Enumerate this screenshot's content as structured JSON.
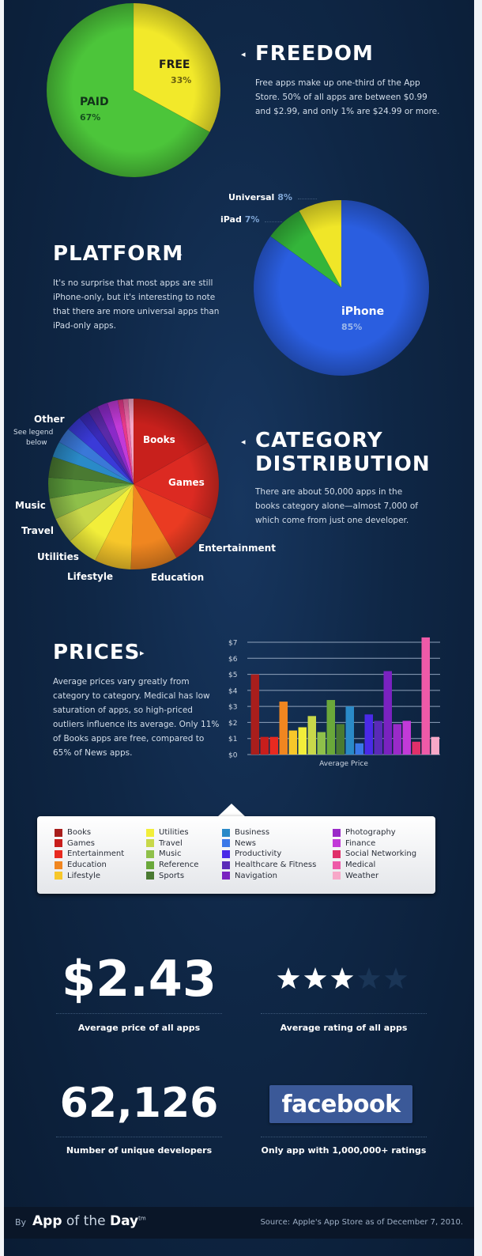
{
  "freedom": {
    "title": "FREEDOM",
    "text": "Free apps make up one-third of the App Store. 50% of all apps are between $0.99 and $2.99, and only 1% are $24.99 or more.",
    "free_label": "FREE",
    "free_pct": "33%",
    "paid_label": "PAID",
    "paid_pct": "67%"
  },
  "platform": {
    "title": "PLATFORM",
    "text": "It's no surprise that most apps are still iPhone-only, but it's interesting to note that there are more universal apps than iPad-only apps.",
    "universal_label": "Universal",
    "universal_pct": "8%",
    "ipad_label": "iPad",
    "ipad_pct": "7%",
    "iphone_label": "iPhone",
    "iphone_pct": "85%"
  },
  "category": {
    "title_line1": "CATEGORY",
    "title_line2": "DISTRIBUTION",
    "text": "There are about 50,000 apps in the books category alone—almost 7,000 of which come from just one developer.",
    "labels": {
      "other": "Other",
      "other_note_1": "See legend",
      "other_note_2": "below",
      "books": "Books",
      "games": "Games",
      "entertainment": "Entertainment",
      "education": "Education",
      "lifestyle": "Lifestyle",
      "utilities": "Utilities",
      "travel": "Travel",
      "music": "Music"
    }
  },
  "prices": {
    "title": "PRICES",
    "text": "Average prices vary greatly from category to category. Medical has low saturation of apps, so high-priced outliers influence its average. Only 11% of Books apps are free, compared to 65% of News apps."
  },
  "chart_data": [
    {
      "type": "pie",
      "labels": [
        "FREE",
        "PAID"
      ],
      "values": [
        33,
        67
      ],
      "colors": [
        "#f2e92a",
        "#4cc53a"
      ]
    },
    {
      "type": "pie",
      "labels": [
        "Universal",
        "iPad",
        "iPhone"
      ],
      "values": [
        8,
        7,
        85
      ],
      "colors": [
        "#f0e628",
        "#34b53a",
        "#2a5ee0"
      ]
    },
    {
      "type": "pie",
      "labels": [
        "Books",
        "Games",
        "Entertainment",
        "Education",
        "Lifestyle",
        "Utilities",
        "Travel",
        "Music",
        "Reference",
        "Sports",
        "Business",
        "News",
        "Productivity",
        "Healthcare & Fitness",
        "Navigation",
        "Photography",
        "Finance",
        "Social Networking",
        "Medical",
        "Weather"
      ],
      "values": [
        17,
        15,
        10,
        9,
        7,
        6,
        5,
        4,
        4,
        4,
        3,
        3,
        3,
        2,
        2,
        2,
        2,
        1,
        1,
        1
      ],
      "colors": [
        "#c8201c",
        "#dc2a22",
        "#ea3b22",
        "#f08620",
        "#f7c72a",
        "#f2ee3a",
        "#c8d84a",
        "#8fc04a",
        "#5a9a3a",
        "#4a7a32",
        "#2a8ac8",
        "#3a78d8",
        "#3a3ad8",
        "#3a2ab8",
        "#5a2aa8",
        "#8a2ac8",
        "#c23ad8",
        "#e83a8a",
        "#ee6aa8",
        "#f7a8c8"
      ]
    },
    {
      "type": "bar",
      "ylabel": "",
      "xlabel": "Average Price",
      "ylim": [
        0,
        7
      ],
      "yticks": [
        "$0",
        "$1",
        "$2",
        "$3",
        "$4",
        "$5",
        "$6",
        "$7"
      ],
      "categories": [
        "Books",
        "Games",
        "Entertainment",
        "Education",
        "Lifestyle",
        "Utilities",
        "Travel",
        "Music",
        "Reference",
        "Sports",
        "Business",
        "News",
        "Productivity",
        "Healthcare & Fitness",
        "Navigation",
        "Photography",
        "Finance",
        "Social Networking",
        "Medical",
        "Weather"
      ],
      "values": [
        5.0,
        1.1,
        1.1,
        3.3,
        1.5,
        1.7,
        2.4,
        1.4,
        3.4,
        1.9,
        3.0,
        0.7,
        2.5,
        2.1,
        5.2,
        1.9,
        2.1,
        0.8,
        7.3,
        1.1
      ],
      "colors": [
        "#a81e1c",
        "#c81e1c",
        "#e82a20",
        "#f08620",
        "#f7c72a",
        "#f2ee3a",
        "#c8d84a",
        "#8fc04a",
        "#6aa83a",
        "#4a7a32",
        "#2a8ac8",
        "#3a78e8",
        "#4a2ae8",
        "#5a2ab8",
        "#7a22c0",
        "#9a2ac8",
        "#c23ad8",
        "#e0306a",
        "#ee5aa8",
        "#f7a8c8"
      ]
    }
  ],
  "legend": {
    "items": [
      [
        "Books",
        "Games",
        "Entertainment",
        "Education",
        "Lifestyle"
      ],
      [
        "Utilities",
        "Travel",
        "Music",
        "Reference",
        "Sports"
      ],
      [
        "Business",
        "News",
        "Productivity",
        "Healthcare & Fitness",
        "Navigation"
      ],
      [
        "Photography",
        "Finance",
        "Social Networking",
        "Medical",
        "Weather"
      ]
    ],
    "colors": [
      [
        "#a81e1c",
        "#c81e1c",
        "#e82a20",
        "#f08620",
        "#f7c72a"
      ],
      [
        "#f2ee3a",
        "#c8d84a",
        "#8fc04a",
        "#6aa83a",
        "#4a7a32"
      ],
      [
        "#2a8ac8",
        "#3a78e8",
        "#4a2ae8",
        "#5a2ab8",
        "#7a22c0"
      ],
      [
        "#9a2ac8",
        "#c23ad8",
        "#e0306a",
        "#ee5aa8",
        "#f7a8c8"
      ]
    ]
  },
  "stats": {
    "avg_price_value": "$2.43",
    "avg_price_caption": "Average price of all apps",
    "avg_rating_stars": 3,
    "avg_rating_max": 5,
    "avg_rating_caption": "Average rating of all apps",
    "developers_value": "62,126",
    "developers_caption": "Number of unique developers",
    "facebook_logo": "facebook",
    "facebook_caption": "Only app with 1,000,000+ ratings"
  },
  "footer": {
    "by": "By",
    "brand_strong": "App",
    "brand_rest": " of the ",
    "brand_strong2": "Day",
    "brand_tm": "tm",
    "source": "Source: Apple's App Store as of December 7, 2010."
  }
}
